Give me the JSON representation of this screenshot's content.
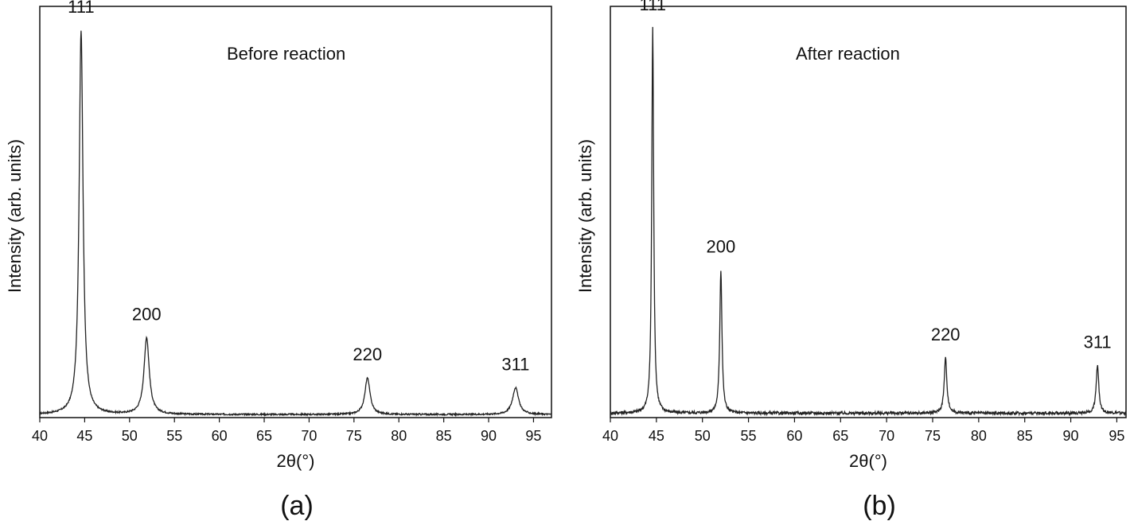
{
  "chart_data": [
    {
      "type": "line",
      "panel_label": "(a)",
      "annotation": "Before reaction",
      "xlabel": "2θ(°)",
      "ylabel": "Intensity (arb. units)",
      "xlim": [
        40,
        97
      ],
      "ylim": [
        0,
        1.07
      ],
      "xticks": [
        "40",
        "45",
        "50",
        "55",
        "60",
        "65",
        "70",
        "75",
        "80",
        "85",
        "90",
        "95"
      ],
      "yticks": [],
      "grid": false,
      "noise": 0.002,
      "baseline": 0.008,
      "peaks": [
        {
          "label": "111",
          "x": 44.6,
          "height": 1.0,
          "width": 0.45
        },
        {
          "label": "200",
          "x": 51.9,
          "height": 0.2,
          "width": 0.6
        },
        {
          "label": "220",
          "x": 76.5,
          "height": 0.095,
          "width": 0.6
        },
        {
          "label": "311",
          "x": 93.0,
          "height": 0.07,
          "width": 0.7
        }
      ]
    },
    {
      "type": "line",
      "panel_label": "(b)",
      "annotation": "After reaction",
      "xlabel": "2θ(°)",
      "ylabel": "Intensity (arb. units)",
      "xlim": [
        40,
        96
      ],
      "ylim": [
        0,
        1.12
      ],
      "xticks": [
        "40",
        "45",
        "50",
        "55",
        "60",
        "65",
        "70",
        "75",
        "80",
        "85",
        "90",
        "95"
      ],
      "yticks": [],
      "grid": false,
      "noise": 0.004,
      "baseline": 0.012,
      "peaks": [
        {
          "label": "111",
          "x": 44.6,
          "height": 1.05,
          "width": 0.22
        },
        {
          "label": "200",
          "x": 52.0,
          "height": 0.39,
          "width": 0.25
        },
        {
          "label": "220",
          "x": 76.4,
          "height": 0.15,
          "width": 0.3
        },
        {
          "label": "311",
          "x": 92.9,
          "height": 0.13,
          "width": 0.3
        }
      ]
    }
  ],
  "colors": {
    "line": "#222222",
    "axis": "#111111",
    "background": "#ffffff"
  }
}
